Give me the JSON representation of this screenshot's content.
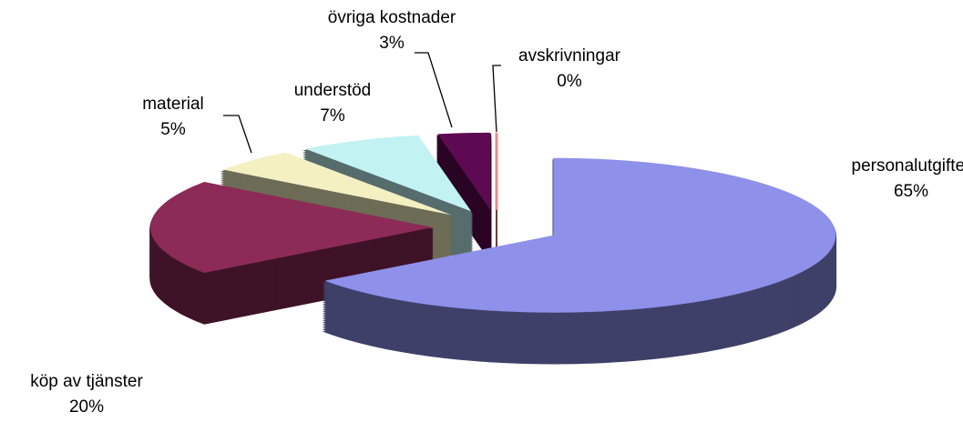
{
  "chart_data": {
    "type": "pie3d",
    "categories": [
      "personalutgifter",
      "köp av tjänster",
      "material",
      "understöd",
      "övriga kostnader",
      "avskrivningar"
    ],
    "values": [
      65,
      20,
      5,
      7,
      3,
      0
    ],
    "value_labels": [
      "65%",
      "20%",
      "5%",
      "7%",
      "3%",
      "0%"
    ],
    "colors": [
      "#8e90ea",
      "#8c2b57",
      "#f4f0c2",
      "#c2f2f2",
      "#5e0a52",
      "#f08a8a"
    ]
  }
}
